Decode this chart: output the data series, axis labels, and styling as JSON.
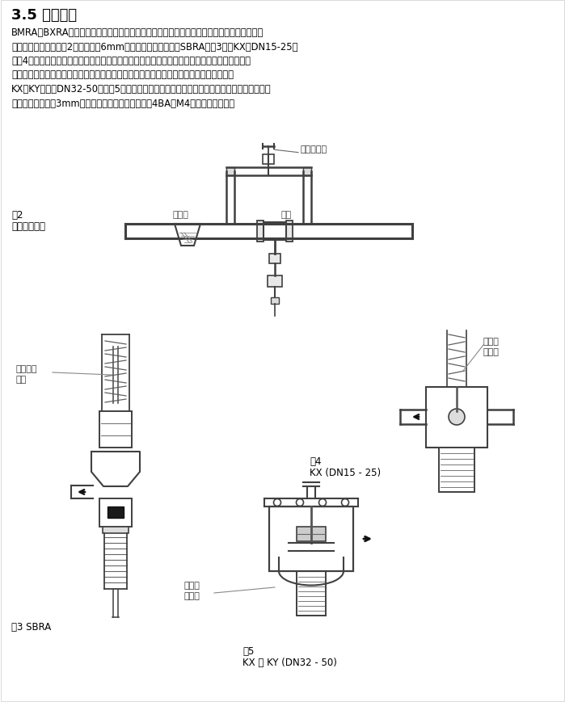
{
  "title": "3.5 恒定泄流",
  "bg_color": "#ffffff",
  "text_color": "#000000",
  "body_text_lines": [
    "BMRA和BXRA阀为常闭阀。当用于冷却控制时，感应器必须有流量经过。可在阀门上安装小口",
    "径的旁通来实现，如图2。通常使用6mm管和手动控制阀即可。SBRA（图3）和KX（DN15-25）",
    "（图4）阀可提供带有泄流孔和无泄流孔的阀门。用于冷却控制时，感应器安装在冷却液管路中，",
    "应使用带有泄流孔的阀门。此时，泄流孔是固定的。其他情况下，应安装无泄流孔的阀门。",
    "KX和KY阀门（DN32-50）（图5）可提供带有泄流孔和无泄流孔的阀门。带有泄流孔的阀门在",
    "进出口之间有一个3mm的孔。在阀门安装之前，可用4BA或M4螺丝将该孔关闭。"
  ],
  "fig2_label_line1": "图2",
  "fig2_label_line2": "典型旁路安装",
  "fig2_bypass_label": "小口径旁通",
  "fig2_filter_label": "过滤器",
  "fig2_valve_label": "阀门",
  "fig3_label": "图3 SBRA",
  "fig3_ann_line1": "可选择泄",
  "fig3_ann_line2": "流孔",
  "fig4_label_line1": "图4",
  "fig4_label_line2": "KX (DN15 - 25)",
  "fig4_ann_line1": "可选择",
  "fig4_ann_line2": "泄流孔",
  "fig5_label_line1": "图5",
  "fig5_label_line2": "KX 和 KY (DN32 - 50)",
  "fig5_ann_line1": "可选择",
  "fig5_ann_line2": "泄流孔"
}
